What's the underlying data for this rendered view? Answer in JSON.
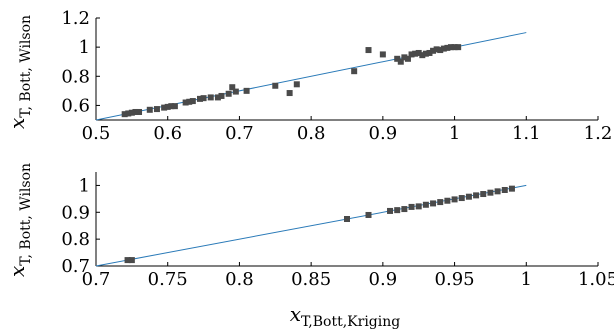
{
  "chart_data": [
    {
      "type": "scatter",
      "ylabel": {
        "symbol": "x",
        "subscript": "T, Bott, Wilson"
      },
      "xlim": [
        0.5,
        1.2
      ],
      "ylim": [
        0.5,
        1.2
      ],
      "xticks": [
        "0.5",
        "0.6",
        "0.7",
        "0.8",
        "0.9",
        "1",
        "1.1",
        "1.2"
      ],
      "yticks": [
        "0.6",
        "0.8",
        "1",
        "1.2"
      ],
      "grid": false,
      "reference_line": {
        "x": [
          0.5,
          1.1
        ],
        "y": [
          0.5,
          1.1
        ],
        "color": "#2a7ab8"
      },
      "marker_color": "#4a4a4a",
      "points": [
        [
          0.54,
          0.54
        ],
        [
          0.545,
          0.545
        ],
        [
          0.55,
          0.55
        ],
        [
          0.555,
          0.555
        ],
        [
          0.56,
          0.555
        ],
        [
          0.575,
          0.57
        ],
        [
          0.585,
          0.575
        ],
        [
          0.595,
          0.585
        ],
        [
          0.6,
          0.59
        ],
        [
          0.605,
          0.595
        ],
        [
          0.61,
          0.595
        ],
        [
          0.625,
          0.62
        ],
        [
          0.63,
          0.625
        ],
        [
          0.635,
          0.63
        ],
        [
          0.645,
          0.645
        ],
        [
          0.65,
          0.65
        ],
        [
          0.66,
          0.655
        ],
        [
          0.67,
          0.655
        ],
        [
          0.675,
          0.665
        ],
        [
          0.685,
          0.68
        ],
        [
          0.69,
          0.725
        ],
        [
          0.695,
          0.695
        ],
        [
          0.71,
          0.7
        ],
        [
          0.75,
          0.735
        ],
        [
          0.77,
          0.685
        ],
        [
          0.78,
          0.745
        ],
        [
          0.86,
          0.835
        ],
        [
          0.88,
          0.98
        ],
        [
          0.9,
          0.95
        ],
        [
          0.92,
          0.92
        ],
        [
          0.925,
          0.9
        ],
        [
          0.93,
          0.93
        ],
        [
          0.935,
          0.92
        ],
        [
          0.94,
          0.95
        ],
        [
          0.945,
          0.955
        ],
        [
          0.95,
          0.96
        ],
        [
          0.955,
          0.945
        ],
        [
          0.96,
          0.955
        ],
        [
          0.965,
          0.96
        ],
        [
          0.97,
          0.975
        ],
        [
          0.975,
          0.985
        ],
        [
          0.98,
          0.98
        ],
        [
          0.985,
          0.99
        ],
        [
          0.99,
          0.995
        ],
        [
          0.995,
          1.0
        ],
        [
          1.0,
          1.0
        ],
        [
          1.005,
          1.0
        ]
      ]
    },
    {
      "type": "scatter",
      "xlabel": {
        "symbol": "x",
        "subscript": "T,Bott,Kriging"
      },
      "ylabel": {
        "symbol": "x",
        "subscript": "T, Bott, Wilson"
      },
      "xlim": [
        0.7,
        1.05
      ],
      "ylim": [
        0.7,
        1.05
      ],
      "xticks": [
        "0.7",
        "0.75",
        "0.8",
        "0.85",
        "0.9",
        "0.95",
        "1",
        "1.05"
      ],
      "yticks": [
        "0.7",
        "0.8",
        "0.9",
        "1"
      ],
      "grid": false,
      "reference_line": {
        "x": [
          0.7,
          1.0
        ],
        "y": [
          0.7,
          1.0
        ],
        "color": "#2a7ab8"
      },
      "marker_color": "#4a4a4a",
      "points": [
        [
          0.722,
          0.722
        ],
        [
          0.725,
          0.722
        ],
        [
          0.875,
          0.875
        ],
        [
          0.89,
          0.89
        ],
        [
          0.905,
          0.905
        ],
        [
          0.91,
          0.908
        ],
        [
          0.915,
          0.912
        ],
        [
          0.92,
          0.92
        ],
        [
          0.925,
          0.922
        ],
        [
          0.93,
          0.928
        ],
        [
          0.935,
          0.933
        ],
        [
          0.94,
          0.938
        ],
        [
          0.945,
          0.943
        ],
        [
          0.95,
          0.948
        ],
        [
          0.955,
          0.953
        ],
        [
          0.96,
          0.958
        ],
        [
          0.965,
          0.963
        ],
        [
          0.97,
          0.968
        ],
        [
          0.975,
          0.973
        ],
        [
          0.98,
          0.978
        ],
        [
          0.985,
          0.983
        ],
        [
          0.99,
          0.988
        ]
      ]
    }
  ]
}
